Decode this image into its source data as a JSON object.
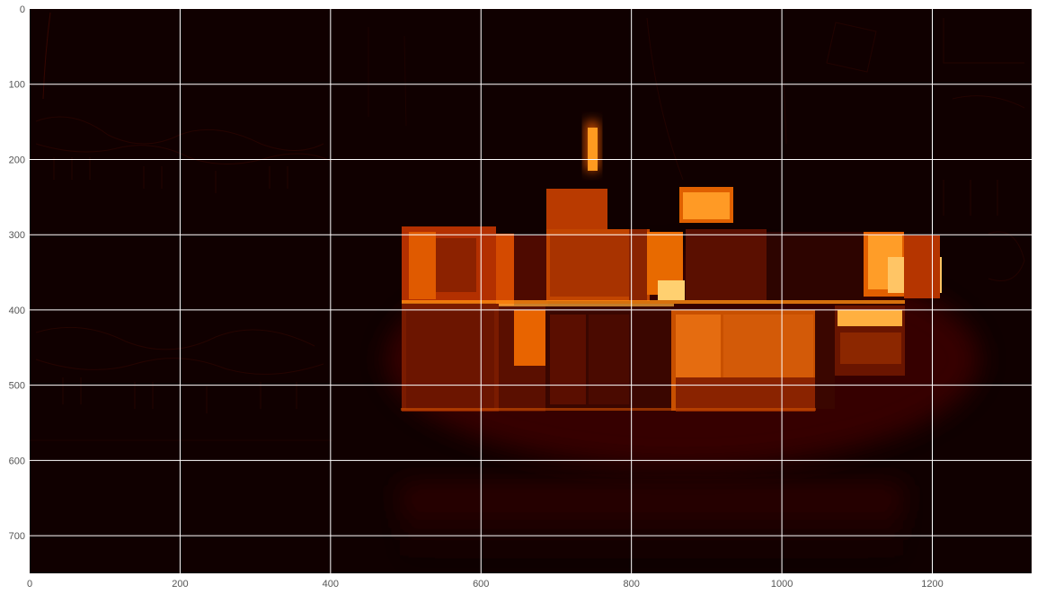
{
  "figure": {
    "colormap": "hot",
    "background_color": "#ffffff",
    "grid": true,
    "grid_color": "#ffffff",
    "x_range": [
      0,
      1332
    ],
    "y_range": [
      750,
      0
    ],
    "x_ticks": [
      {
        "value": 0,
        "label": "0"
      },
      {
        "value": 200,
        "label": "200"
      },
      {
        "value": 400,
        "label": "400"
      },
      {
        "value": 600,
        "label": "600"
      },
      {
        "value": 800,
        "label": "800"
      },
      {
        "value": 1000,
        "label": "1000"
      },
      {
        "value": 1200,
        "label": "1200"
      }
    ],
    "y_ticks": [
      {
        "value": 0,
        "label": "0"
      },
      {
        "value": 100,
        "label": "100"
      },
      {
        "value": 200,
        "label": "200"
      },
      {
        "value": 300,
        "label": "300"
      },
      {
        "value": 400,
        "label": "400"
      },
      {
        "value": 500,
        "label": "500"
      },
      {
        "value": 600,
        "label": "600"
      },
      {
        "value": 700,
        "label": "700"
      }
    ]
  }
}
